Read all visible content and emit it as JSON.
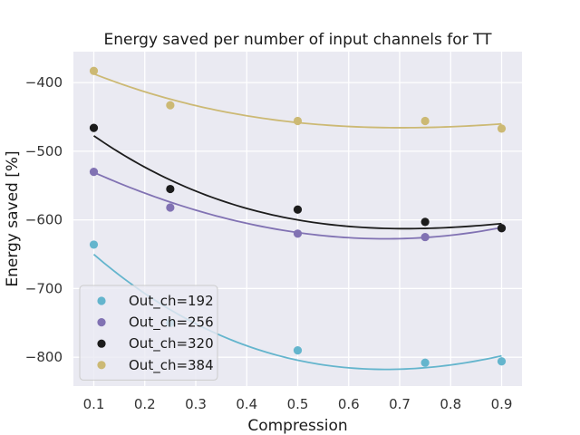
{
  "chart_data": {
    "type": "scatter",
    "title": "Energy saved per number of input channels for TT",
    "xlabel": "Compression",
    "ylabel": "Energy saved [%]",
    "xlim": [
      0.06,
      0.94
    ],
    "ylim": [
      -842,
      -355
    ],
    "xticks": [
      0.1,
      0.2,
      0.3,
      0.4,
      0.5,
      0.6,
      0.7,
      0.8,
      0.9
    ],
    "xtick_labels": [
      "0.1",
      "0.2",
      "0.3",
      "0.4",
      "0.5",
      "0.6",
      "0.7",
      "0.8",
      "0.9"
    ],
    "yticks": [
      -800,
      -700,
      -600,
      -500,
      -400
    ],
    "ytick_labels": [
      "−800",
      "−700",
      "−600",
      "−500",
      "−400"
    ],
    "grid": true,
    "legend_position": "bottom-left",
    "series": [
      {
        "name": "Out_ch=192",
        "color": "#64b5cd",
        "x": [
          0.1,
          0.25,
          0.5,
          0.75,
          0.9
        ],
        "y": [
          -636,
          -750,
          -790,
          -808,
          -806
        ],
        "fit": [
          -650.2,
          -768.7,
          -817.5,
          -798.0
        ]
      },
      {
        "name": "Out_ch=256",
        "color": "#8172b3",
        "x": [
          0.1,
          0.25,
          0.5,
          0.75,
          0.9
        ],
        "y": [
          -530,
          -582,
          -620,
          -625,
          -612
        ],
        "fit": [
          -530.8,
          -596.1,
          -627.4,
          -611.1
        ]
      },
      {
        "name": "Out_ch=320",
        "color": "#1c1c1c",
        "x": [
          0.1,
          0.25,
          0.5,
          0.75,
          0.9
        ],
        "y": [
          -466,
          -555,
          -585,
          -603,
          -612
        ],
        "fit": [
          -477.5,
          -571.8,
          -611.8,
          -605.4
        ]
      },
      {
        "name": "Out_ch=384",
        "color": "#ccb974",
        "x": [
          0.1,
          0.25,
          0.5,
          0.75,
          0.9
        ],
        "y": [
          -383,
          -433,
          -456,
          -456,
          -467
        ],
        "fit": [
          -387.3,
          -441.6,
          -465.3,
          -460.2
        ]
      }
    ]
  }
}
